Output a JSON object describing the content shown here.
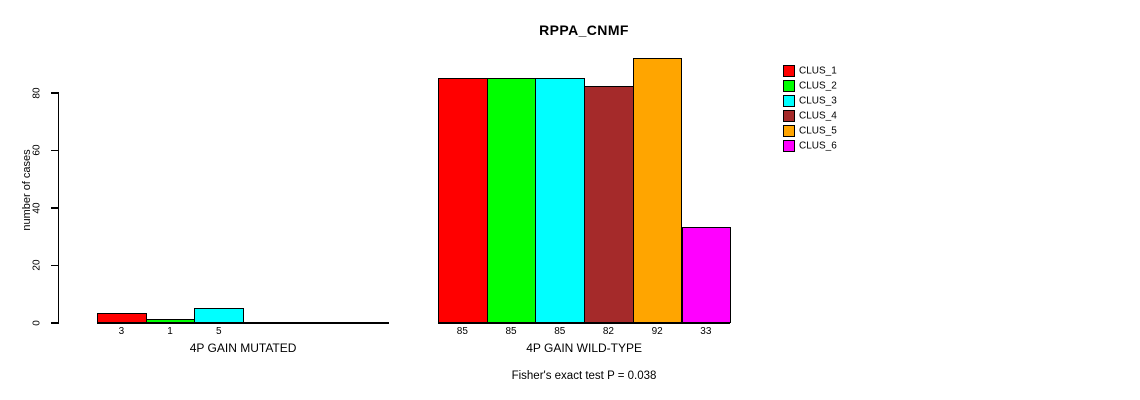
{
  "title": "RPPA_CNMF",
  "footer": "Fisher's exact test P = 0.038",
  "y_axis": {
    "label": "number of cases",
    "ticks": [
      0,
      20,
      40,
      60,
      80
    ]
  },
  "palette": [
    "#FF0000",
    "#00FF00",
    "#00FFFF",
    "#A52A2A",
    "#FFA500",
    "#FF00FF"
  ],
  "legend": [
    {
      "label": "CLUS_1",
      "color": "#FF0000"
    },
    {
      "label": "CLUS_2",
      "color": "#00FF00"
    },
    {
      "label": "CLUS_3",
      "color": "#00FFFF"
    },
    {
      "label": "CLUS_4",
      "color": "#A52A2A"
    },
    {
      "label": "CLUS_5",
      "color": "#FFA500"
    },
    {
      "label": "CLUS_6",
      "color": "#FF00FF"
    }
  ],
  "chart_data": {
    "type": "bar",
    "title": "RPPA_CNMF",
    "ylabel": "number of cases",
    "ylim": [
      0,
      92
    ],
    "yticks": [
      0,
      20,
      40,
      60,
      80
    ],
    "grid": false,
    "legend_position": "right",
    "categories": [
      "CLUS_1",
      "CLUS_2",
      "CLUS_3",
      "CLUS_4",
      "CLUS_5",
      "CLUS_6"
    ],
    "groups": [
      {
        "label": "4P GAIN MUTATED",
        "values": [
          3,
          1,
          5,
          0,
          0,
          0
        ]
      },
      {
        "label": "4P GAIN WILD-TYPE",
        "values": [
          85,
          85,
          85,
          82,
          92,
          33
        ]
      }
    ],
    "annotation": "Fisher's exact test P = 0.038"
  }
}
